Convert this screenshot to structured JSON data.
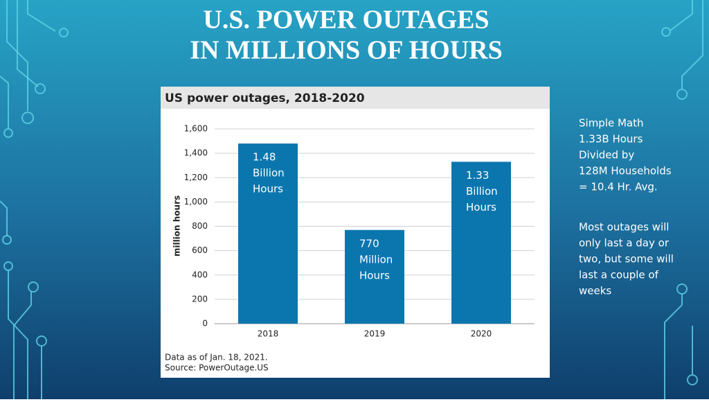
{
  "slide_title_lines": [
    "U.S. POWER OUTAGES",
    "IN MILLIONS OF HOURS"
  ],
  "side_notes": [
    [
      "Simple Math",
      "1.33B Hours",
      "Divided by",
      "128M Households",
      "= 10.4 Hr. Avg."
    ],
    [
      "Most outages will",
      "only last a day or",
      "two, but some will",
      "last a couple of",
      "weeks"
    ]
  ],
  "chart_data": {
    "type": "bar",
    "title": "US power outages, 2018-2020",
    "y_label": "million hours",
    "categories": [
      "2018",
      "2019",
      "2020"
    ],
    "values": [
      1480,
      770,
      1330
    ],
    "value_labels": [
      [
        "1.48",
        "Billion",
        "Hours"
      ],
      [
        "770",
        "Million",
        "Hours"
      ],
      [
        "1.33",
        "Billion",
        "Hours"
      ]
    ],
    "color": "#0b76ae",
    "ylim": [
      0,
      1600
    ],
    "yticks": [
      0,
      200,
      400,
      600,
      800,
      {
        "value": 1000,
        "label": "1,000"
      },
      {
        "value": 1200,
        "label": "1,200"
      },
      {
        "value": 1400,
        "label": "1,400"
      },
      {
        "value": 1600,
        "label": "1,600"
      }
    ],
    "grid": true,
    "notes": [
      "Data as of Jan. 18, 2021.",
      "Source: PowerOutage.US"
    ]
  }
}
